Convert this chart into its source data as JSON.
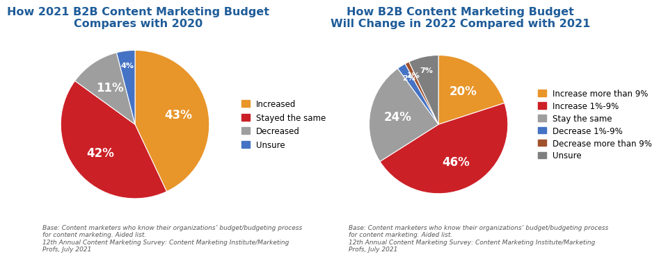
{
  "chart1": {
    "title": "How 2021 B2B Content Marketing Budget\nCompares with 2020",
    "values": [
      43,
      42,
      11,
      4
    ],
    "labels": [
      "43%",
      "42%",
      "11%",
      "4%"
    ],
    "colors": [
      "#E8952A",
      "#CC2027",
      "#9E9E9E",
      "#4472C4"
    ],
    "legend_labels": [
      "Increased",
      "Stayed the same",
      "Decreased",
      "Unsure"
    ],
    "startangle": 90,
    "footnote": "Base: Content marketers who know their organizations’ budget/budgeting process\nfor content marketing. Aided list.\n12th Annual Content Marketing Survey: Content Marketing Institute/Marketing\nProfs, July 2021"
  },
  "chart2": {
    "title": "How B2B Content Marketing Budget\nWill Change in 2022 Compared with 2021",
    "values": [
      20,
      46,
      24,
      2,
      1,
      7
    ],
    "labels": [
      "20%",
      "46%",
      "24%",
      "2%",
      "1%",
      "7%"
    ],
    "colors": [
      "#E8952A",
      "#CC2027",
      "#9E9E9E",
      "#4472C4",
      "#A0522D",
      "#7F7F7F"
    ],
    "legend_labels": [
      "Increase more than 9%",
      "Increase 1%-9%",
      "Stay the same",
      "Decrease 1%-9%",
      "Decrease more than 9%",
      "Unsure"
    ],
    "startangle": 90,
    "footnote": "Base: Content marketers who know their organizations’ budget/budgeting process\nfor content marketing. Aided list.\n12th Annual Content Marketing Survey: Content Marketing Institute/Marketing\nProfs, July 2021"
  },
  "title_color": "#1F5C99",
  "background_color": "#FFFFFF",
  "label_fontsize": 12,
  "title_fontsize": 11.5,
  "legend_fontsize": 8.5,
  "footnote_fontsize": 6.5
}
